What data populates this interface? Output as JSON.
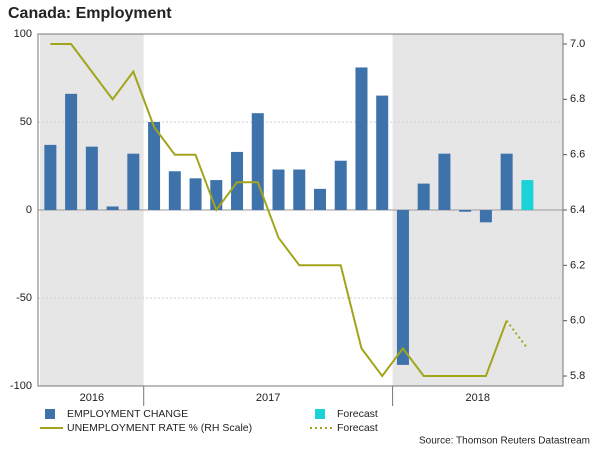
{
  "chart_data": {
    "type": "bar",
    "title": "Canada: Employment",
    "source": "Source: Thomson Reuters Datastream",
    "categories": [
      null,
      null,
      null,
      null,
      null,
      null,
      null,
      null,
      null,
      null,
      null,
      null,
      null,
      null,
      null,
      null,
      null,
      null,
      null,
      null,
      null,
      null,
      null,
      null
    ],
    "year_groups": [
      {
        "label": "2016",
        "start": 0,
        "end": 4
      },
      {
        "label": "2017",
        "start": 5,
        "end": 16
      },
      {
        "label": "2018",
        "start": 17,
        "end": 23
      }
    ],
    "shaded_years": [
      0,
      2
    ],
    "series": [
      {
        "name": "EMPLOYMENT CHANGE",
        "type": "bar",
        "color": "#3d72aa",
        "values": [
          37,
          66,
          36,
          2,
          32,
          50,
          22,
          18,
          17,
          33,
          55,
          23,
          23,
          12,
          28,
          81,
          65,
          -88,
          15,
          32,
          -1,
          -7,
          32,
          null
        ]
      },
      {
        "name": "Forecast",
        "type": "bar",
        "color": "#19d3d9",
        "values": [
          null,
          null,
          null,
          null,
          null,
          null,
          null,
          null,
          null,
          null,
          null,
          null,
          null,
          null,
          null,
          null,
          null,
          null,
          null,
          null,
          null,
          null,
          null,
          17
        ]
      },
      {
        "name": "UNEMPLOYMENT RATE % (RH Scale)",
        "type": "line",
        "axis": "y2",
        "color": "#a2a51c",
        "values": [
          7.0,
          7.0,
          6.9,
          6.8,
          6.9,
          6.7,
          6.6,
          6.6,
          6.4,
          6.5,
          6.5,
          6.3,
          6.2,
          6.2,
          6.2,
          5.9,
          5.8,
          5.9,
          5.8,
          5.8,
          5.8,
          5.8,
          6.0,
          null
        ]
      },
      {
        "name": "Forecast",
        "type": "line",
        "axis": "y2",
        "color": "#a2a51c",
        "dashed": true,
        "values": [
          null,
          null,
          null,
          null,
          null,
          null,
          null,
          null,
          null,
          null,
          null,
          null,
          null,
          null,
          null,
          null,
          null,
          null,
          null,
          null,
          null,
          null,
          6.0,
          5.9
        ]
      }
    ],
    "ylim": [
      -100,
      100
    ],
    "yticks": [
      -100,
      -50,
      0,
      50,
      100
    ],
    "y2lim": [
      5.764,
      7.036
    ],
    "y2ticks": [
      5.8,
      {
        "value": 6,
        "label": "6.0"
      },
      6.2,
      6.4,
      6.6,
      6.8,
      {
        "value": 7,
        "label": "7.0"
      }
    ],
    "grid": true
  }
}
